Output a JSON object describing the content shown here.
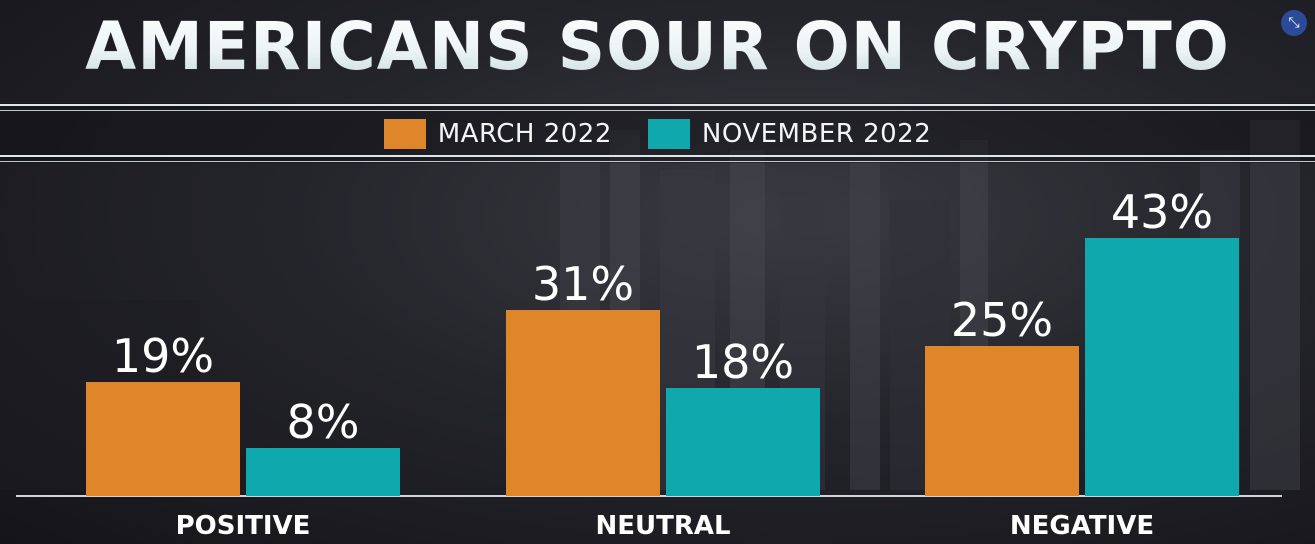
{
  "header": {
    "title": "AMERICANS SOUR ON CRYPTO"
  },
  "legend": {
    "items": [
      {
        "label": "MARCH 2022",
        "color": "#e0862a"
      },
      {
        "label": "NOVEMBER 2022",
        "color": "#0fa8ad"
      }
    ]
  },
  "controls": {
    "collapse_icon": "collapse-arrows-icon"
  },
  "chart_data": {
    "type": "bar",
    "title": "AMERICANS SOUR ON CRYPTO",
    "categories": [
      "POSITIVE",
      "NEUTRAL",
      "NEGATIVE"
    ],
    "series": [
      {
        "name": "MARCH 2022",
        "values": [
          19,
          31,
          25
        ],
        "labels": [
          "19%",
          "31%",
          "25%"
        ],
        "color": "#e0862a"
      },
      {
        "name": "NOVEMBER 2022",
        "values": [
          8,
          18,
          43
        ],
        "labels": [
          "8%",
          "18%",
          "43%"
        ],
        "color": "#0fa8ad"
      }
    ],
    "ylim": [
      0,
      43
    ],
    "xlabel": "",
    "ylabel": "",
    "grid": false,
    "legend_position": "top-center"
  }
}
